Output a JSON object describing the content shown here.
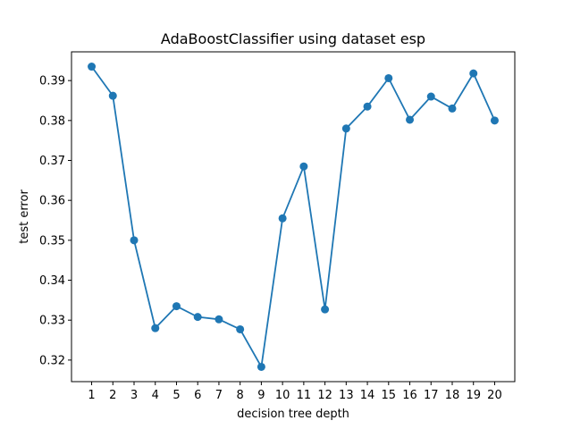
{
  "chart_data": {
    "type": "line",
    "title": "AdaBoostClassifier using dataset esp",
    "xlabel": "decision tree depth",
    "ylabel": "test error",
    "x": [
      1,
      2,
      3,
      4,
      5,
      6,
      7,
      8,
      9,
      10,
      11,
      12,
      13,
      14,
      15,
      16,
      17,
      18,
      19,
      20
    ],
    "series": [
      {
        "values": [
          0.3935,
          0.3862,
          0.35,
          0.328,
          0.3335,
          0.3308,
          0.3302,
          0.3277,
          0.3183,
          0.3555,
          0.3685,
          0.3327,
          0.378,
          0.3835,
          0.3906,
          0.3802,
          0.386,
          0.383,
          0.3918,
          0.38
        ],
        "color": "#1f77b4",
        "marker": "circle"
      }
    ],
    "xticks": [
      "1",
      "2",
      "3",
      "4",
      "5",
      "6",
      "7",
      "8",
      "9",
      "10",
      "11",
      "12",
      "13",
      "14",
      "15",
      "16",
      "17",
      "18",
      "19",
      "20"
    ],
    "yticks": [
      "0.32",
      "0.33",
      "0.34",
      "0.35",
      "0.36",
      "0.37",
      "0.38",
      "0.39"
    ],
    "ytick_values": [
      0.32,
      0.33,
      0.34,
      0.35,
      0.36,
      0.37,
      0.38,
      0.39
    ],
    "xlim": [
      0.05,
      20.95
    ],
    "ylim": [
      0.3146,
      0.3972
    ],
    "grid": false,
    "legend": "none"
  }
}
